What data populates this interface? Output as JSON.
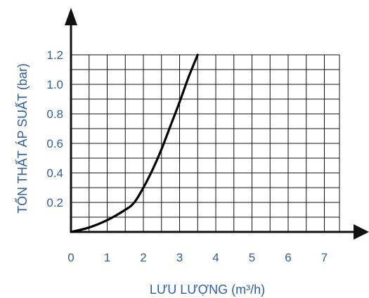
{
  "chart_data": {
    "type": "line",
    "title": "",
    "xlabel": "LƯU LƯỢNG (m³/h)",
    "ylabel": "TỔN THẤT ÁP SUẤT (bar)",
    "xlim": [
      0,
      7.5
    ],
    "ylim": [
      0,
      1.2
    ],
    "x_ticks": [
      "0",
      "1",
      "2",
      "3",
      "4",
      "5",
      "6",
      "7"
    ],
    "y_ticks": [
      "0.2",
      "0.4",
      "0.6",
      "0.8",
      "1.0",
      "1.2"
    ],
    "grid": true,
    "series": [
      {
        "x": [
          0,
          0.5,
          1.0,
          1.5,
          1.75,
          2.0,
          2.25,
          2.5,
          2.75,
          3.0,
          3.25,
          3.5
        ],
        "y": [
          0,
          0.03,
          0.08,
          0.15,
          0.2,
          0.3,
          0.42,
          0.56,
          0.72,
          0.88,
          1.05,
          1.2
        ]
      }
    ],
    "colors": {
      "axis": "#111111",
      "grid": "#111111",
      "line": "#000000",
      "tick_text": "#2f5fa0",
      "title_text": "#2f5fa0"
    }
  }
}
